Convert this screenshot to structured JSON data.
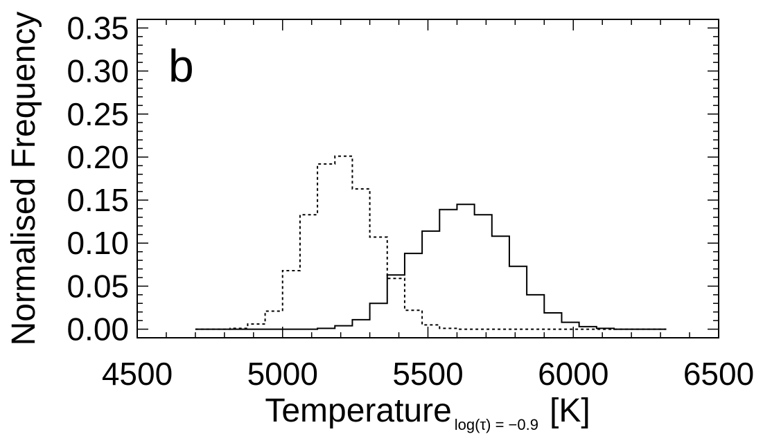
{
  "chart_data": {
    "type": "line",
    "panel_label": "b",
    "xlabel": "Temperature",
    "xlabel_subscript": "log(τ) = −0.9",
    "xlabel_unit": "[K]",
    "ylabel": "Normalised Frequency",
    "xlim": [
      4500,
      6500
    ],
    "ylim": [
      -0.01,
      0.36
    ],
    "x_ticks": [
      4500,
      5000,
      5500,
      6000,
      6500
    ],
    "x_tick_labels": [
      "4500",
      "5000",
      "5500",
      "6000",
      "6500"
    ],
    "y_ticks": [
      0.0,
      0.05,
      0.1,
      0.15,
      0.2,
      0.25,
      0.3,
      0.35
    ],
    "y_tick_labels": [
      "0.00",
      "0.05",
      "0.10",
      "0.15",
      "0.20",
      "0.25",
      "0.30",
      "0.35"
    ],
    "bin_edges": [
      4700,
      4760,
      4820,
      4880,
      4940,
      5000,
      5060,
      5120,
      5180,
      5240,
      5300,
      5360,
      5420,
      5480,
      5540,
      5600,
      5660,
      5720,
      5780,
      5840,
      5900,
      5960,
      6020,
      6080,
      6140,
      6200,
      6260,
      6320
    ],
    "series": [
      {
        "style": "dotted",
        "values": [
          0.0,
          0.0,
          0.001,
          0.006,
          0.021,
          0.068,
          0.133,
          0.192,
          0.201,
          0.163,
          0.107,
          0.059,
          0.022,
          0.005,
          0.001,
          0.0,
          0.0,
          0.0,
          0.0,
          0.0,
          0.0,
          0.0,
          0.0,
          0.0,
          0.0,
          0.0,
          0.0
        ]
      },
      {
        "style": "solid",
        "values": [
          0.0,
          0.0,
          0.0,
          0.0,
          0.0,
          0.0,
          0.0,
          0.001,
          0.004,
          0.011,
          0.03,
          0.063,
          0.088,
          0.114,
          0.139,
          0.145,
          0.133,
          0.108,
          0.073,
          0.04,
          0.019,
          0.008,
          0.003,
          0.001,
          0.0,
          0.0,
          0.0
        ]
      }
    ],
    "grid": false,
    "legend": "none"
  }
}
